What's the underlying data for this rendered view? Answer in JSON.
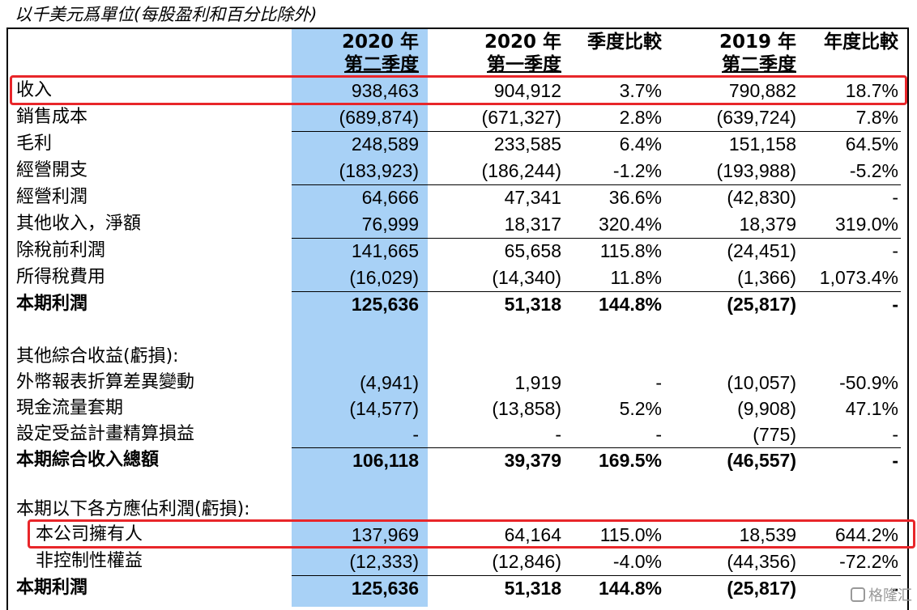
{
  "caption": "以千美元爲單位(每股盈利和百分比除外)",
  "headers": {
    "col1_line1": "2020 年",
    "col1_line2": "第二季度",
    "col2_line1": "2020 年",
    "col2_line2": "第一季度",
    "col3_line1": "季度比較",
    "col4_line1": "2019 年",
    "col4_line2": "第二季度",
    "col5_line1": "年度比較"
  },
  "rows": [
    {
      "label": "收入",
      "v1": "938,463",
      "v2": "904,912",
      "v3": "3.7%",
      "v4": "790,882",
      "v5": "18.7%"
    },
    {
      "label": "銷售成本",
      "v1": "(689,874)",
      "v2": "(671,327)",
      "v3": "2.8%",
      "v4": "(639,724)",
      "v5": "7.8%"
    },
    {
      "label": "毛利",
      "v1": "248,589",
      "v2": "233,585",
      "v3": "6.4%",
      "v4": "151,158",
      "v5": "64.5%"
    },
    {
      "label": "經營開支",
      "v1": "(183,923)",
      "v2": "(186,244)",
      "v3": "-1.2%",
      "v4": "(193,988)",
      "v5": "-5.2%"
    },
    {
      "label": "經營利潤",
      "v1": "64,666",
      "v2": "47,341",
      "v3": "36.6%",
      "v4": "(42,830)",
      "v5": "-"
    },
    {
      "label": "其他收入，淨額",
      "v1": "76,999",
      "v2": "18,317",
      "v3": "320.4%",
      "v4": "18,379",
      "v5": "319.0%"
    },
    {
      "label": "除稅前利潤",
      "v1": "141,665",
      "v2": "65,658",
      "v3": "115.8%",
      "v4": "(24,451)",
      "v5": "-"
    },
    {
      "label": "所得稅費用",
      "v1": "(16,029)",
      "v2": "(14,340)",
      "v3": "11.8%",
      "v4": "(1,366)",
      "v5": "1,073.4%"
    },
    {
      "label": "本期利潤",
      "v1": "125,636",
      "v2": "51,318",
      "v3": "144.8%",
      "v4": "(25,817)",
      "v5": "-"
    },
    {
      "label": "其他綜合收益(虧損):"
    },
    {
      "label": "外幣報表折算差異變動",
      "v1": "(4,941)",
      "v2": "1,919",
      "v3": "-",
      "v4": "(10,057)",
      "v5": "-50.9%"
    },
    {
      "label": "現金流量套期",
      "v1": "(14,577)",
      "v2": "(13,858)",
      "v3": "5.2%",
      "v4": "(9,908)",
      "v5": "47.1%"
    },
    {
      "label": "設定受益計畫精算損益",
      "v1": "-",
      "v2": "-",
      "v3": "-",
      "v4": "(775)",
      "v5": "-"
    },
    {
      "label": "本期綜合收入總額",
      "v1": "106,118",
      "v2": "39,379",
      "v3": "169.5%",
      "v4": "(46,557)",
      "v5": "-"
    },
    {
      "label": "本期以下各方應佔利潤(虧損):"
    },
    {
      "label": "本公司擁有人",
      "v1": "137,969",
      "v2": "64,164",
      "v3": "115.0%",
      "v4": "18,539",
      "v5": "644.2%"
    },
    {
      "label": "非控制性權益",
      "v1": "(12,333)",
      "v2": "(12,846)",
      "v3": "-4.0%",
      "v4": "(44,356)",
      "v5": "-72.2%"
    },
    {
      "label": "本期利潤",
      "v1": "125,636",
      "v2": "51,318",
      "v3": "144.8%",
      "v4": "(25,817)",
      "v5": "-"
    }
  ],
  "watermark": "格隆汇"
}
